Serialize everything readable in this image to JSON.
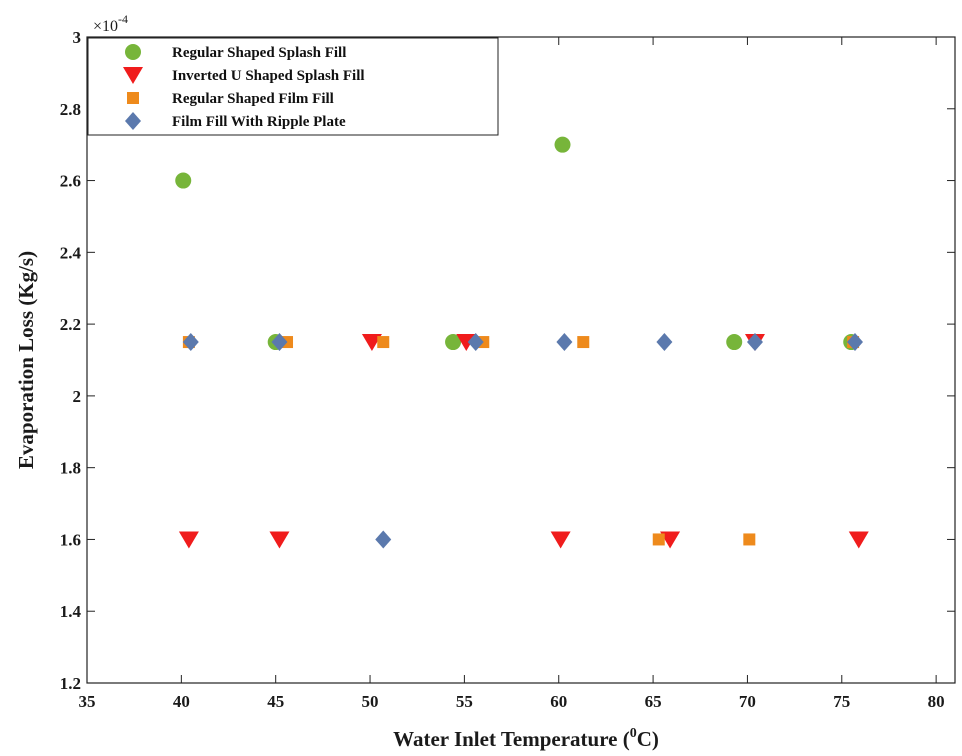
{
  "chart_data": {
    "type": "scatter",
    "xlabel": "Water Inlet Temperature (",
    "xlabel_sup": "0",
    "xlabel_tail": "C)",
    "ylabel": "Evaporation Loss (Kg/s)",
    "exponent_label": "×10",
    "exponent_power": "-4",
    "xlim": [
      35,
      81
    ],
    "ylim": [
      1.2,
      3.0
    ],
    "xticks": [
      "35",
      "40",
      "45",
      "50",
      "55",
      "60",
      "65",
      "70",
      "75",
      "80"
    ],
    "xtick_values": [
      35,
      40,
      45,
      50,
      55,
      60,
      65,
      70,
      75,
      80
    ],
    "yticks": [
      "1.2",
      "1.4",
      "1.6",
      "1.8",
      "2",
      "2.2",
      "2.4",
      "2.6",
      "2.8",
      "3"
    ],
    "ytick_values": [
      1.2,
      1.4,
      1.6,
      1.8,
      2.0,
      2.2,
      2.4,
      2.6,
      2.8,
      3.0
    ],
    "grid": false,
    "legend_position": "top-left",
    "series": [
      {
        "name": "Regular Shaped Splash Fill",
        "marker": "circle",
        "color": "#77b53a",
        "points": [
          [
            40.1,
            2.6
          ],
          [
            45.0,
            2.15
          ],
          [
            54.4,
            2.15
          ],
          [
            60.2,
            2.7
          ],
          [
            69.3,
            2.15
          ],
          [
            75.5,
            2.15
          ]
        ]
      },
      {
        "name": "Inverted U Shaped Splash Fill",
        "marker": "triangle-down",
        "color": "#f01c1c",
        "points": [
          [
            40.4,
            1.6
          ],
          [
            45.2,
            1.6
          ],
          [
            50.1,
            2.15
          ],
          [
            55.1,
            2.15
          ],
          [
            60.1,
            1.6
          ],
          [
            65.9,
            1.6
          ],
          [
            70.4,
            2.15
          ],
          [
            75.9,
            1.6
          ]
        ]
      },
      {
        "name": "Regular Shaped Film Fill",
        "marker": "square",
        "color": "#ee8a1c",
        "points": [
          [
            40.4,
            2.15
          ],
          [
            45.6,
            2.15
          ],
          [
            50.7,
            2.15
          ],
          [
            56.0,
            2.15
          ],
          [
            61.3,
            2.15
          ],
          [
            65.3,
            1.6
          ],
          [
            70.1,
            1.6
          ],
          [
            75.6,
            2.15
          ]
        ]
      },
      {
        "name": "Film Fill With Ripple Plate",
        "marker": "diamond",
        "color": "#5b79ad",
        "points": [
          [
            40.5,
            2.15
          ],
          [
            45.2,
            2.15
          ],
          [
            50.7,
            1.6
          ],
          [
            55.6,
            2.15
          ],
          [
            60.3,
            2.15
          ],
          [
            65.6,
            2.15
          ],
          [
            70.4,
            2.15
          ],
          [
            75.7,
            2.15
          ]
        ]
      }
    ]
  }
}
